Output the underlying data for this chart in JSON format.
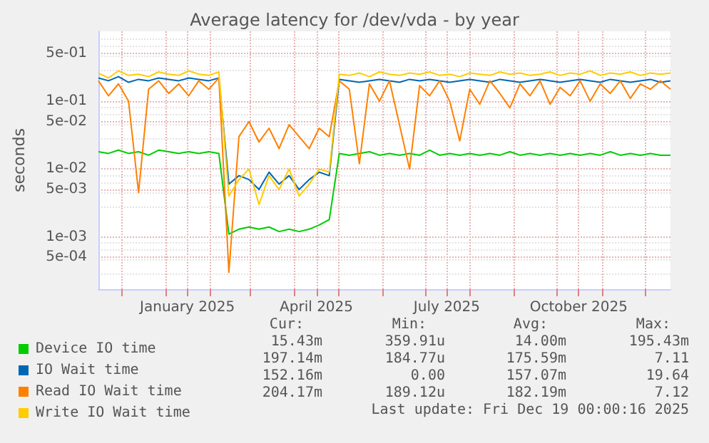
{
  "chart_data": {
    "type": "line",
    "title": "Average latency for /dev/vda - by year",
    "ylabel": "seconds",
    "log": "y",
    "grid": true,
    "legend": "bottom",
    "xlim": [
      "2024-11-15",
      "2025-12-19"
    ],
    "xticks": [
      {
        "value": "2024-12-01",
        "label": null
      },
      {
        "value": "2025-01-01",
        "label": null
      },
      {
        "value": "2025-01-16",
        "label": "January 2025"
      },
      {
        "value": "2025-02-01",
        "label": null
      },
      {
        "value": "2025-03-01",
        "label": null
      },
      {
        "value": "2025-04-01",
        "label": null
      },
      {
        "value": "2025-04-16",
        "label": "April 2025"
      },
      {
        "value": "2025-05-01",
        "label": null
      },
      {
        "value": "2025-06-01",
        "label": null
      },
      {
        "value": "2025-07-01",
        "label": null
      },
      {
        "value": "2025-07-16",
        "label": "July 2025"
      },
      {
        "value": "2025-08-01",
        "label": null
      },
      {
        "value": "2025-09-01",
        "label": null
      },
      {
        "value": "2025-10-01",
        "label": null
      },
      {
        "value": "2025-10-16",
        "label": "October 2025"
      },
      {
        "value": "2025-11-01",
        "label": null
      },
      {
        "value": "2025-12-01",
        "label": null
      }
    ],
    "ylim": [
      0.00017,
      1.07
    ],
    "yticks": [
      {
        "value": 0.0005,
        "label": "5e-04"
      },
      {
        "value": 0.001,
        "label": "1e-03"
      },
      {
        "value": 0.005,
        "label": "5e-03"
      },
      {
        "value": 0.01,
        "label": "1e-02"
      },
      {
        "value": 0.05,
        "label": "5e-02"
      },
      {
        "value": 0.1,
        "label": "1e-01"
      },
      {
        "value": 0.5,
        "label": "5e-01"
      }
    ],
    "x": [
      "2024-11-15",
      "2024-11-22",
      "2024-11-29",
      "2024-12-06",
      "2024-12-13",
      "2024-12-20",
      "2024-12-27",
      "2025-01-03",
      "2025-01-10",
      "2025-01-17",
      "2025-01-24",
      "2025-01-31",
      "2025-02-07",
      "2025-02-14",
      "2025-02-21",
      "2025-02-28",
      "2025-03-07",
      "2025-03-14",
      "2025-03-21",
      "2025-03-28",
      "2025-04-04",
      "2025-04-11",
      "2025-04-18",
      "2025-04-25",
      "2025-05-02",
      "2025-05-09",
      "2025-05-16",
      "2025-05-23",
      "2025-05-30",
      "2025-06-06",
      "2025-06-13",
      "2025-06-20",
      "2025-06-27",
      "2025-07-04",
      "2025-07-11",
      "2025-07-18",
      "2025-07-25",
      "2025-08-01",
      "2025-08-08",
      "2025-08-15",
      "2025-08-22",
      "2025-08-29",
      "2025-09-05",
      "2025-09-12",
      "2025-09-19",
      "2025-09-26",
      "2025-10-03",
      "2025-10-10",
      "2025-10-17",
      "2025-10-24",
      "2025-10-31",
      "2025-11-07",
      "2025-11-14",
      "2025-11-21",
      "2025-11-28",
      "2025-12-05",
      "2025-12-12",
      "2025-12-19"
    ],
    "series": [
      {
        "name": "Device IO time",
        "color": "#00cc00",
        "values": [
          0.018,
          0.017,
          0.019,
          0.017,
          0.018,
          0.016,
          0.019,
          0.018,
          0.017,
          0.018,
          0.017,
          0.018,
          0.017,
          0.0011,
          0.0013,
          0.0014,
          0.0013,
          0.0014,
          0.0012,
          0.0013,
          0.0012,
          0.0013,
          0.0015,
          0.0018,
          0.017,
          0.016,
          0.017,
          0.018,
          0.016,
          0.017,
          0.016,
          0.017,
          0.016,
          0.019,
          0.016,
          0.017,
          0.016,
          0.017,
          0.016,
          0.017,
          0.016,
          0.018,
          0.016,
          0.017,
          0.016,
          0.017,
          0.016,
          0.017,
          0.016,
          0.017,
          0.016,
          0.018,
          0.016,
          0.017,
          0.016,
          0.017,
          0.016,
          0.016
        ]
      },
      {
        "name": "IO Wait time",
        "color": "#0066b3",
        "values": [
          0.22,
          0.2,
          0.23,
          0.19,
          0.21,
          0.2,
          0.22,
          0.21,
          0.2,
          0.22,
          0.21,
          0.2,
          0.22,
          0.006,
          0.008,
          0.007,
          0.005,
          0.009,
          0.006,
          0.008,
          0.005,
          0.007,
          0.009,
          0.008,
          0.21,
          0.2,
          0.19,
          0.2,
          0.21,
          0.2,
          0.19,
          0.21,
          0.2,
          0.21,
          0.2,
          0.19,
          0.2,
          0.21,
          0.2,
          0.19,
          0.21,
          0.2,
          0.19,
          0.2,
          0.21,
          0.2,
          0.19,
          0.2,
          0.21,
          0.2,
          0.19,
          0.21,
          0.2,
          0.19,
          0.2,
          0.21,
          0.19,
          0.2
        ]
      },
      {
        "name": "Read IO Wait time",
        "color": "#ff8000",
        "values": [
          0.2,
          0.12,
          0.18,
          0.1,
          0.0045,
          0.15,
          0.2,
          0.13,
          0.18,
          0.12,
          0.2,
          0.15,
          0.22,
          0.0003,
          0.03,
          0.05,
          0.025,
          0.04,
          0.02,
          0.045,
          0.03,
          0.02,
          0.04,
          0.03,
          0.2,
          0.15,
          0.012,
          0.18,
          0.1,
          0.2,
          0.045,
          0.01,
          0.17,
          0.12,
          0.2,
          0.1,
          0.026,
          0.15,
          0.09,
          0.2,
          0.13,
          0.08,
          0.18,
          0.12,
          0.2,
          0.09,
          0.16,
          0.12,
          0.2,
          0.1,
          0.18,
          0.13,
          0.2,
          0.11,
          0.18,
          0.15,
          0.2,
          0.15
        ]
      },
      {
        "name": "Write IO Wait time",
        "color": "#ffcc00",
        "values": [
          0.26,
          0.22,
          0.28,
          0.24,
          0.25,
          0.23,
          0.27,
          0.25,
          0.24,
          0.28,
          0.25,
          0.24,
          0.27,
          0.004,
          0.007,
          0.01,
          0.003,
          0.008,
          0.005,
          0.01,
          0.004,
          0.006,
          0.01,
          0.009,
          0.25,
          0.24,
          0.26,
          0.23,
          0.27,
          0.25,
          0.24,
          0.26,
          0.25,
          0.27,
          0.24,
          0.25,
          0.23,
          0.26,
          0.25,
          0.24,
          0.27,
          0.25,
          0.26,
          0.24,
          0.25,
          0.27,
          0.24,
          0.26,
          0.25,
          0.28,
          0.24,
          0.26,
          0.25,
          0.27,
          0.24,
          0.26,
          0.25,
          0.26
        ]
      }
    ],
    "annotations": [
      "Cur:",
      "Min:",
      "Avg:",
      "Max:",
      "15.43m",
      "359.91u",
      "14.00m",
      "195.43m",
      "197.14m",
      "184.77u",
      "175.59m",
      "7.11",
      "152.16m",
      "0.00",
      "157.07m",
      "19.64",
      "204.17m",
      "189.12u",
      "182.19m",
      "7.12",
      "Last update: Fri Dec 19 00:00:16 2025"
    ]
  }
}
